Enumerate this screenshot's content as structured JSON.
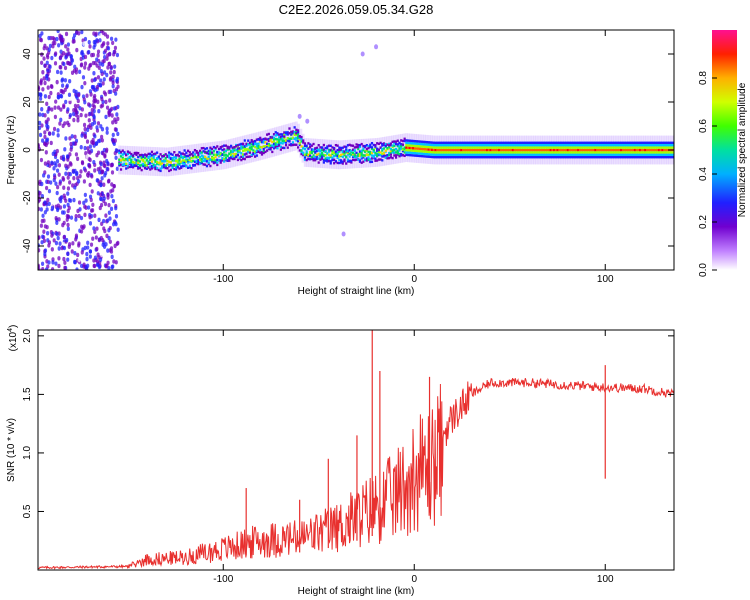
{
  "title": "C2E2.2026.059.05.34.G28",
  "chart_data": [
    {
      "type": "heatmap",
      "xlabel": "Height of straight line (km)",
      "ylabel": "Frequency (Hz)",
      "xlim": [
        -197,
        136
      ],
      "ylim": [
        -50,
        50
      ],
      "x_ticks": [
        -100,
        0,
        100
      ],
      "x_tick_labels": [
        "-100",
        "0",
        "100"
      ],
      "y_ticks": [
        -40,
        -20,
        0,
        20,
        40
      ],
      "y_tick_labels": [
        "-40",
        "-20",
        "0",
        "20",
        "40"
      ],
      "colorbar": {
        "label": "Normalized spectral amplitude",
        "range": [
          0,
          1
        ],
        "ticks": [
          0.0,
          0.2,
          0.4,
          0.6,
          0.8
        ],
        "tick_labels": [
          "0.0",
          "0.2",
          "0.4",
          "0.6",
          "0.8"
        ],
        "colors": [
          "#ffffff",
          "#7000c0",
          "#2020ff",
          "#00c0ff",
          "#00e060",
          "#a0ff00",
          "#ffd000",
          "#ff6000",
          "#ff0000",
          "#ff00a0"
        ]
      },
      "ridge": {
        "description_free_points": [
          {
            "x": -160,
            "f": -4
          },
          {
            "x": -130,
            "f": -5
          },
          {
            "x": -100,
            "f": -2
          },
          {
            "x": -80,
            "f": 2
          },
          {
            "x": -62,
            "f": 6
          },
          {
            "x": -58,
            "f": -1
          },
          {
            "x": -40,
            "f": -2
          },
          {
            "x": -20,
            "f": -1
          },
          {
            "x": -5,
            "f": 1
          },
          {
            "x": 10,
            "f": 0
          },
          {
            "x": 50,
            "f": 0
          },
          {
            "x": 100,
            "f": 0
          },
          {
            "x": 136,
            "f": 0
          }
        ],
        "band_halfwidth_hz": 3
      },
      "noise_region_x": [
        -197,
        -155
      ]
    },
    {
      "type": "line",
      "xlabel": "Height of straight line (km)",
      "ylabel": "SNR (10 * v/v)",
      "multiplier_label": "(x10",
      "multiplier_exp": "4",
      "multiplier_close": ")",
      "xlim": [
        -197,
        136
      ],
      "ylim": [
        0,
        2.05
      ],
      "x_ticks": [
        -100,
        0,
        100
      ],
      "x_tick_labels": [
        "-100",
        "0",
        "100"
      ],
      "y_ticks": [
        0.5,
        1.0,
        1.5,
        2.0
      ],
      "y_tick_labels": [
        "0.5",
        "1.0",
        "1.5",
        "2.0"
      ],
      "series": [
        {
          "name": "SNR",
          "color": "#e8302e",
          "envelope": [
            {
              "x": -197,
              "y": 0.02
            },
            {
              "x": -150,
              "y": 0.03
            },
            {
              "x": -140,
              "y": 0.1
            },
            {
              "x": -120,
              "y": 0.12
            },
            {
              "x": -100,
              "y": 0.2
            },
            {
              "x": -80,
              "y": 0.28
            },
            {
              "x": -60,
              "y": 0.3
            },
            {
              "x": -40,
              "y": 0.4
            },
            {
              "x": -25,
              "y": 0.55
            },
            {
              "x": -10,
              "y": 0.7
            },
            {
              "x": 0,
              "y": 0.9
            },
            {
              "x": 10,
              "y": 1.0
            },
            {
              "x": 20,
              "y": 1.3
            },
            {
              "x": 30,
              "y": 1.5
            },
            {
              "x": 40,
              "y": 1.6
            },
            {
              "x": 60,
              "y": 1.6
            },
            {
              "x": 80,
              "y": 1.58
            },
            {
              "x": 100,
              "y": 1.56
            },
            {
              "x": 120,
              "y": 1.55
            },
            {
              "x": 136,
              "y": 1.5
            }
          ],
          "spikes": [
            {
              "x": -22,
              "y": 2.05
            },
            {
              "x": -18,
              "y": 1.7
            },
            {
              "x": -30,
              "y": 1.15
            },
            {
              "x": -45,
              "y": 0.95
            },
            {
              "x": -60,
              "y": 0.6
            },
            {
              "x": -88,
              "y": 0.7
            },
            {
              "x": 8,
              "y": 1.65
            },
            {
              "x": 100,
              "y": 1.75
            }
          ]
        }
      ]
    }
  ]
}
